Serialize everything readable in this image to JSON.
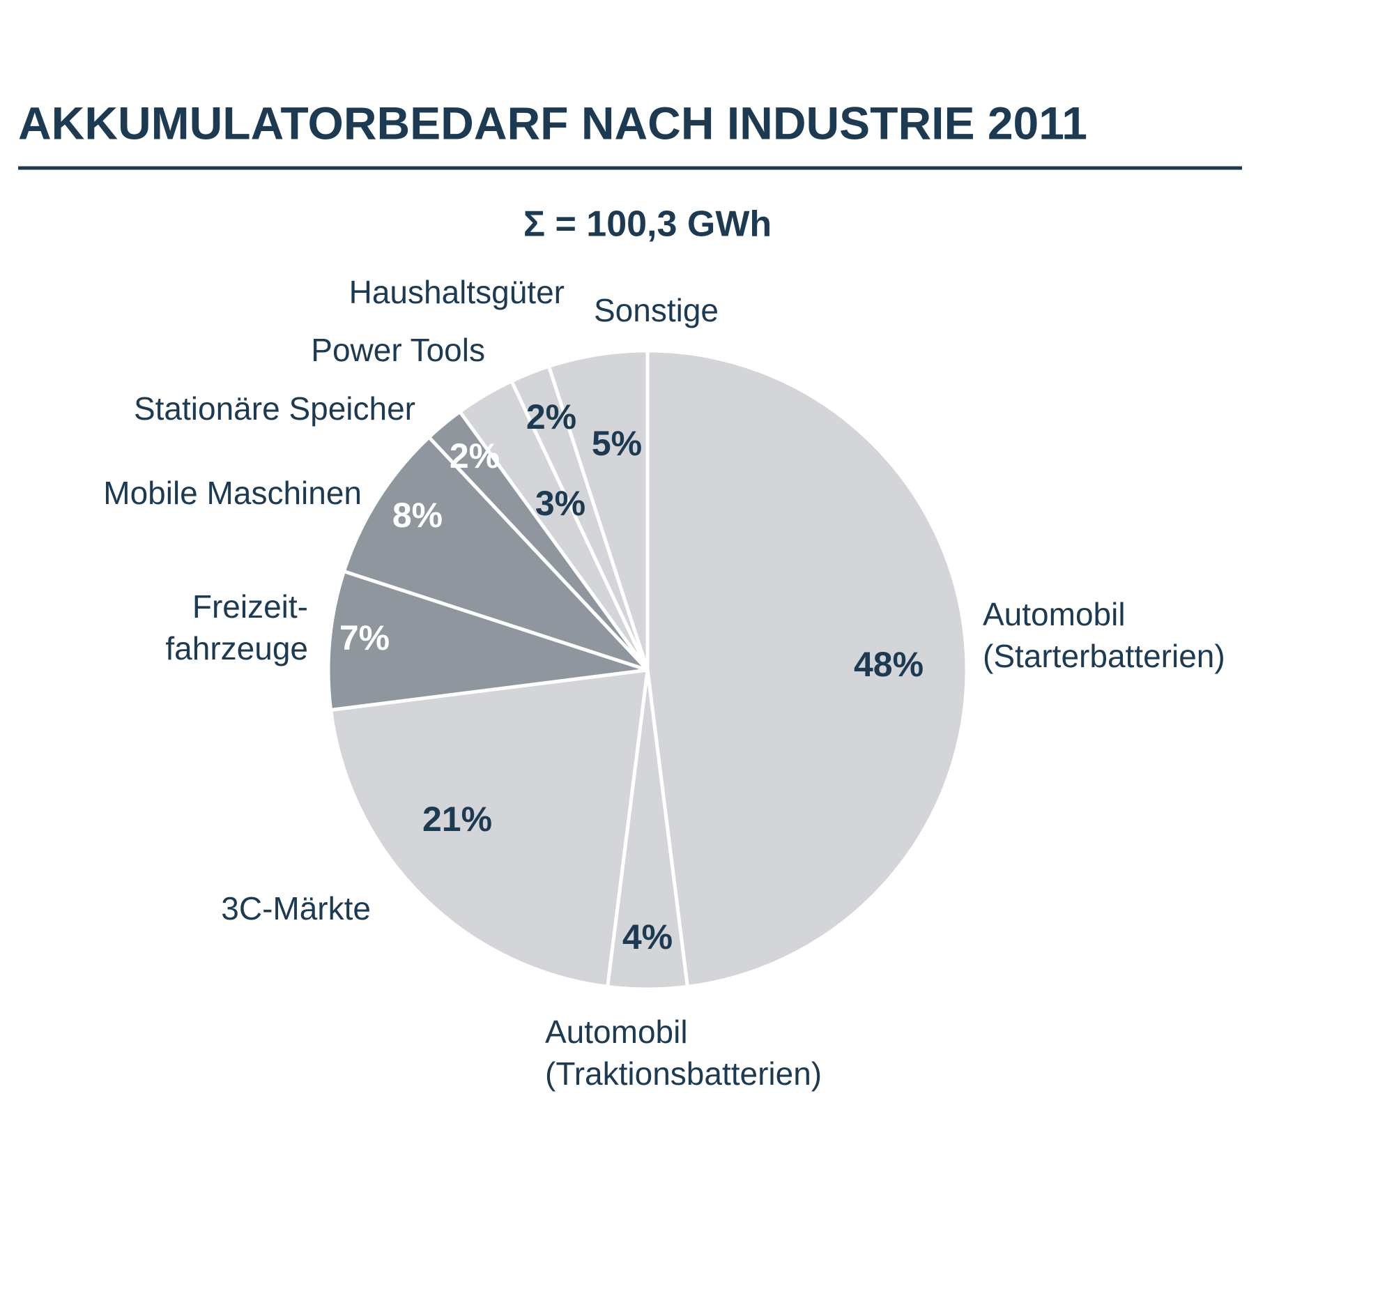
{
  "chart_data": {
    "type": "pie",
    "title": "AKKUMULATORBEDARF NACH INDUSTRIE 2011",
    "subtitle": "Σ = 100,3 GWh",
    "categories": [
      "Automobil\n(Starterbatterien)",
      "Automobil\n(Traktionsbatterien)",
      "3C-Märkte",
      "Freizeit-\nfahrzeuge",
      "Mobile Maschinen",
      "Stationäre Speicher",
      "Power Tools",
      "Haushaltsgüter",
      "Sonstige"
    ],
    "values": [
      48,
      4,
      21,
      7,
      8,
      2,
      3,
      2,
      5
    ],
    "value_labels": [
      "48%",
      "4%",
      "21%",
      "7%",
      "8%",
      "2%",
      "3%",
      "2%",
      "5%"
    ],
    "colors": [
      "#d3d5d8",
      "#d3d5d8",
      "#d3d5d8",
      "#8f969d",
      "#8f969d",
      "#8f969d",
      "#d3d5d8",
      "#d3d5d8",
      "#d3d5d8"
    ]
  }
}
